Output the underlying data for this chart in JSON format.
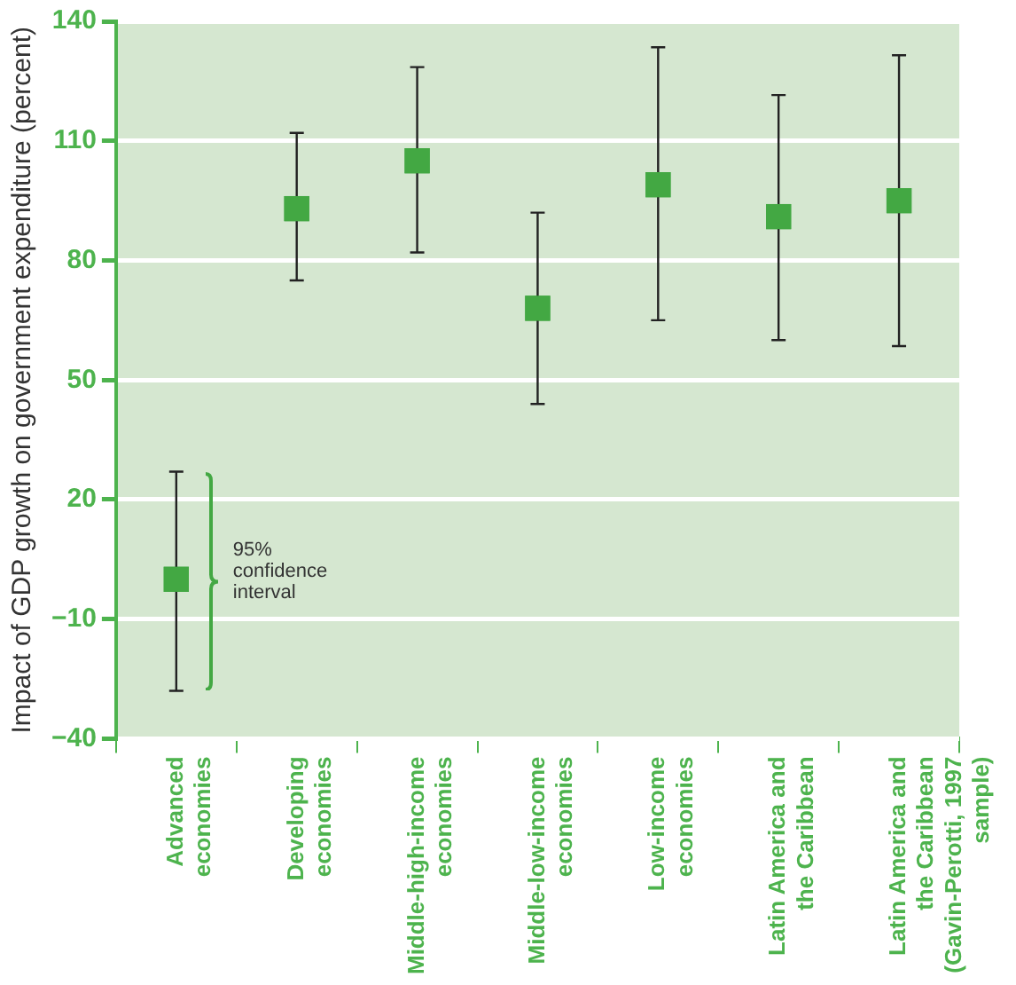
{
  "chart_data": {
    "type": "scatter",
    "ylabel": "Impact of GDP growth on government expenditure (percent)",
    "categories": [
      "Advanced economies",
      "Developing economies",
      "Middle-high-income economies",
      "Middle-low-income economies",
      "Low-income economies",
      "Latin America and the Caribbean",
      "Latin America and the Caribbean (Gavin-Perotti, 1997 sample)"
    ],
    "series": [
      {
        "color": "#43a843",
        "values": [
          0,
          93,
          105,
          68,
          99,
          91,
          95
        ],
        "errors": [
          [
            -28,
            27
          ],
          [
            75,
            112
          ],
          [
            82,
            128.5
          ],
          [
            44,
            92
          ],
          [
            65,
            133.5
          ],
          [
            60,
            121.5
          ],
          [
            58.5,
            131.5
          ]
        ]
      }
    ],
    "ylim": [
      -40,
      140
    ],
    "yticks": [
      -40,
      -10,
      20,
      50,
      80,
      110,
      140
    ],
    "grid": "y",
    "marker": "square",
    "legend": false,
    "annotations": [
      "95% confidence interval"
    ]
  }
}
